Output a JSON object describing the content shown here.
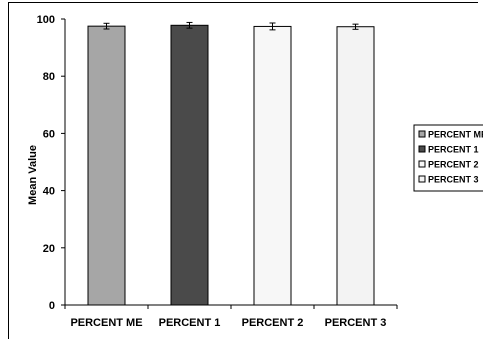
{
  "chart_data": {
    "type": "bar",
    "categories": [
      "PERCENT ME",
      "PERCENT 1",
      "PERCENT 2",
      "PERCENT 3"
    ],
    "values": [
      97.5,
      97.8,
      97.4,
      97.3
    ],
    "error": [
      1.0,
      1.0,
      1.2,
      0.9
    ],
    "ylabel": "Mean Value",
    "xlabel": "",
    "ylim": [
      0,
      100
    ],
    "yticks": [
      0,
      20,
      40,
      60,
      80,
      100
    ],
    "legend_position": "right",
    "colors": [
      "#a6a6a6",
      "#4a4a4a",
      "#f7f7f7",
      "#f3f3f3"
    ],
    "legend": [
      "PERCENT ME",
      "PERCENT 1",
      "PERCENT 2",
      "PERCENT 3"
    ]
  }
}
